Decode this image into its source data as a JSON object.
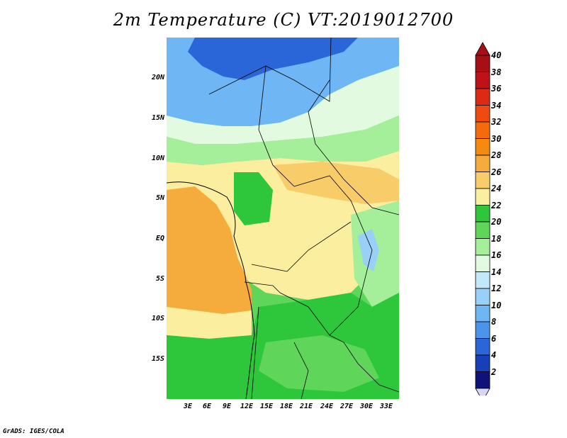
{
  "title": "2m Temperature (C) VT:2019012700",
  "credit": "GrADS: IGES/COLA",
  "lat_labels": [
    "20N",
    "15N",
    "10N",
    "5N",
    "EQ",
    "5S",
    "10S",
    "15S"
  ],
  "lon_labels": [
    "3E",
    "6E",
    "9E",
    "12E",
    "15E",
    "18E",
    "21E",
    "24E",
    "27E",
    "30E",
    "33E"
  ],
  "colorbar": {
    "levels": [
      "40",
      "38",
      "36",
      "34",
      "32",
      "30",
      "28",
      "26",
      "24",
      "22",
      "20",
      "18",
      "16",
      "14",
      "12",
      "10",
      "8",
      "6",
      "4",
      "2"
    ],
    "colors": [
      "#a50f15",
      "#c0101a",
      "#dc2a14",
      "#f04a10",
      "#f46a0c",
      "#f58a10",
      "#f6ac3c",
      "#f9cc6a",
      "#fbee9f",
      "#2ec63a",
      "#5fd65a",
      "#a5ee9a",
      "#e2fae0",
      "#c2e8fa",
      "#98d0f8",
      "#6eb6f4",
      "#4a94ec",
      "#2a66d8",
      "#163fb8",
      "#10127a"
    ],
    "top_arrow_color": "#a50f15",
    "bottom_arrow_color": "#d8d6f4"
  },
  "map_colors": {
    "cold": "#2a66d8",
    "cool": "#6eb6f4",
    "light_blue": "#98d0f8",
    "very_light": "#e2fae0",
    "light_green": "#a5ee9a",
    "green": "#5fd65a",
    "dark_green": "#2ec63a",
    "pale_yellow": "#fbee9f",
    "yellow": "#f9cc6a",
    "orange": "#f6ac3c"
  }
}
